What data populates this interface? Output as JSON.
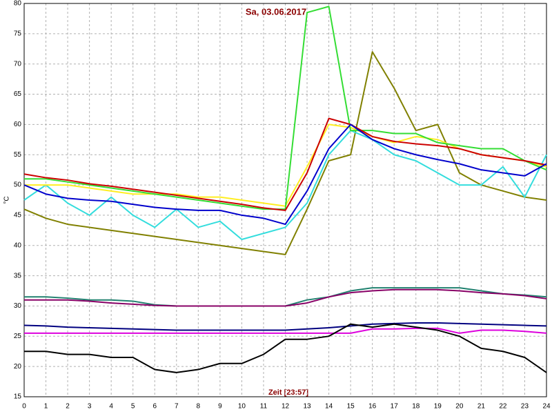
{
  "chart_data": {
    "type": "line",
    "title": "Sa, 03.06.2017",
    "ylabel": "°C",
    "xlabel": "Zeit [23:57]",
    "x": [
      0,
      1,
      2,
      3,
      4,
      5,
      6,
      7,
      8,
      9,
      10,
      11,
      12,
      13,
      14,
      15,
      16,
      17,
      18,
      19,
      20,
      21,
      22,
      23,
      24
    ],
    "xlim": [
      0,
      24
    ],
    "xticks": [
      0,
      1,
      2,
      3,
      4,
      5,
      6,
      7,
      8,
      9,
      10,
      11,
      12,
      13,
      14,
      15,
      16,
      17,
      18,
      19,
      20,
      21,
      22,
      23,
      24
    ],
    "ylim": [
      15,
      80
    ],
    "yticks": [
      15,
      20,
      25,
      30,
      35,
      40,
      45,
      50,
      55,
      60,
      65,
      70,
      75,
      80
    ],
    "grid": true,
    "series": [
      {
        "color": "#20806f",
        "values": [
          31.5,
          31.5,
          31.3,
          31,
          31,
          30.8,
          30.2,
          30,
          30,
          30,
          30,
          30,
          30,
          31,
          31.5,
          32.5,
          33,
          33,
          33,
          33,
          33,
          32.5,
          32,
          31.8,
          31.5
        ]
      },
      {
        "color": "#880066",
        "values": [
          31,
          31,
          31,
          30.8,
          30.5,
          30.3,
          30.1,
          30,
          30,
          30,
          30,
          30,
          30,
          30.5,
          31.5,
          32.2,
          32.5,
          32.7,
          32.7,
          32.7,
          32.5,
          32.2,
          32,
          31.7,
          31.2
        ]
      },
      {
        "color": "#000080",
        "values": [
          26.8,
          26.7,
          26.5,
          26.4,
          26.3,
          26.2,
          26.1,
          26,
          26,
          26,
          26,
          26,
          26,
          26.2,
          26.4,
          26.7,
          27,
          27.1,
          27.2,
          27.2,
          27.1,
          27,
          26.9,
          26.8,
          26.7
        ]
      },
      {
        "color": "#dd00dd",
        "values": [
          25.5,
          25.5,
          25.5,
          25.5,
          25.5,
          25.5,
          25.5,
          25.5,
          25.5,
          25.5,
          25.5,
          25.5,
          25.5,
          25.5,
          25.5,
          25.5,
          26.2,
          26.2,
          26.3,
          26.3,
          25.5,
          26,
          26,
          25.8,
          25.5
        ]
      },
      {
        "color": "#000000",
        "values": [
          22.5,
          22.5,
          22,
          22,
          21.5,
          21.5,
          19.5,
          19,
          19.5,
          20.5,
          20.5,
          22,
          24.5,
          24.5,
          25,
          27,
          26.5,
          27,
          26.5,
          26,
          25,
          23,
          22.5,
          21.5,
          19
        ]
      },
      {
        "color": "#808000",
        "values": [
          46,
          44.5,
          43.5,
          43,
          42.5,
          42,
          41.5,
          41,
          40.5,
          40,
          39.5,
          39,
          38.5,
          46,
          54,
          55,
          72,
          66,
          59,
          60,
          52,
          50,
          49,
          48,
          47.5
        ]
      },
      {
        "color": "#33dddd",
        "values": [
          47.5,
          50,
          47,
          45,
          48,
          45,
          43,
          46,
          43,
          44,
          41,
          42,
          43,
          47,
          55,
          59,
          57.5,
          55,
          54,
          52,
          50,
          50,
          53,
          48,
          55
        ]
      },
      {
        "color": "#ffee22",
        "values": [
          50,
          50,
          50,
          49.5,
          49,
          48.5,
          48.5,
          48.5,
          48,
          48,
          47.5,
          47,
          46.5,
          53,
          60,
          59.5,
          58,
          57,
          58,
          57.5,
          56,
          55,
          54.5,
          54,
          53
        ]
      },
      {
        "color": "#33dd33",
        "values": [
          51,
          51,
          50.5,
          50,
          49.5,
          49,
          48.5,
          48,
          47.5,
          47,
          46.5,
          46,
          46,
          78.5,
          79.5,
          59,
          59,
          58.5,
          58.5,
          57,
          56.5,
          56,
          56,
          54,
          52.5
        ]
      },
      {
        "color": "#cc0000",
        "values": [
          51.8,
          51.2,
          50.8,
          50.2,
          49.8,
          49.3,
          48.8,
          48.3,
          47.8,
          47.3,
          46.8,
          46.2,
          45.8,
          52,
          61,
          60,
          58,
          57.2,
          56.8,
          56.5,
          56,
          55,
          54.5,
          54,
          53.3
        ]
      },
      {
        "color": "#0000cc",
        "values": [
          50,
          48.5,
          47.8,
          47.5,
          47.3,
          46.8,
          46.3,
          46,
          45.8,
          45.8,
          45,
          44.5,
          43.5,
          49,
          56,
          60,
          57.5,
          56,
          55,
          54.2,
          53.5,
          52.5,
          52,
          51.5,
          53.5
        ]
      }
    ]
  }
}
